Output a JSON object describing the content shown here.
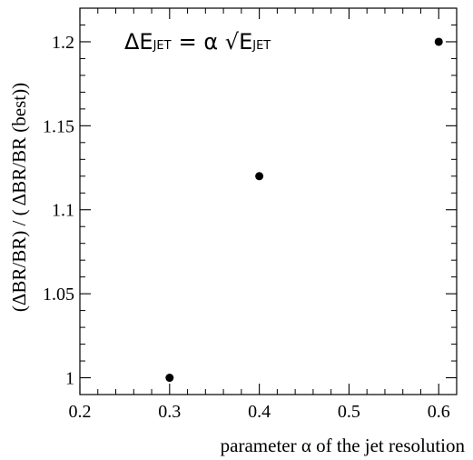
{
  "chart_data": {
    "type": "scatter",
    "title": "",
    "annotation": {
      "prefix": "ΔE",
      "prefix_sub": "JET",
      "equals": "= α ",
      "sqrt_sign": "√",
      "radicand": "E",
      "radicand_sub": "JET"
    },
    "xlabel": "parameter α of the jet resolution",
    "ylabel": "(ΔBR/BR) / ( ΔBR/BR (best))",
    "xlim": [
      0.2,
      0.62
    ],
    "ylim": [
      0.99,
      1.22
    ],
    "x_ticks": [
      0.2,
      0.3,
      0.4,
      0.5,
      0.6
    ],
    "x_tick_labels": [
      "0.2",
      "0.3",
      "0.4",
      "0.5",
      "0.6"
    ],
    "y_ticks": [
      1.0,
      1.05,
      1.1,
      1.15,
      1.2
    ],
    "y_tick_labels": [
      "1",
      "1.05",
      "1.1",
      "1.15",
      "1.2"
    ],
    "points": [
      {
        "x": 0.3,
        "y": 1.0
      },
      {
        "x": 0.4,
        "y": 1.12
      },
      {
        "x": 0.6,
        "y": 1.2
      }
    ],
    "grid": false,
    "marker_color": "#000000"
  }
}
